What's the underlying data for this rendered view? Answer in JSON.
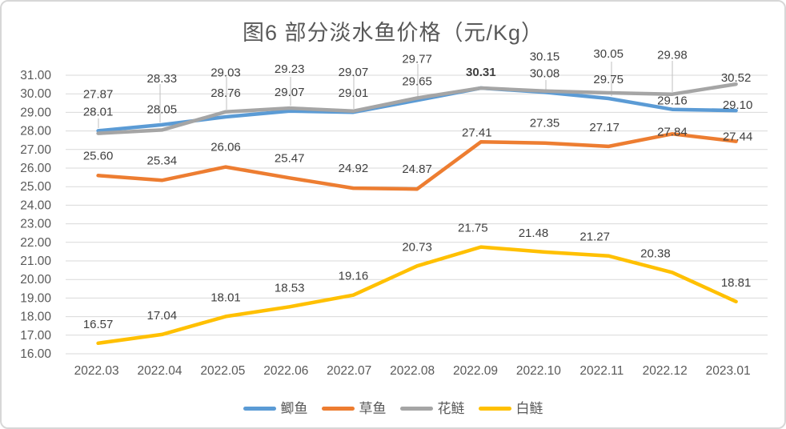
{
  "title": "图6 部分淡水鱼价格（元/Kg）",
  "chart_data": {
    "type": "line",
    "title": "图6 部分淡水鱼价格（元/Kg）",
    "categories": [
      "2022.03",
      "2022.04",
      "2022.05",
      "2022.06",
      "2022.07",
      "2022.08",
      "2022.09",
      "2022.10",
      "2022.11",
      "2022.12",
      "2023.01"
    ],
    "series": [
      {
        "id": "jiyu",
        "name": "鲫鱼",
        "color": "#5B9BD5",
        "values": [
          28.01,
          28.33,
          28.76,
          29.07,
          29.01,
          29.65,
          30.31,
          30.08,
          29.75,
          29.16,
          29.1
        ]
      },
      {
        "id": "caoyu",
        "name": "草鱼",
        "color": "#ED7D31",
        "values": [
          25.6,
          25.34,
          26.06,
          25.47,
          24.92,
          24.87,
          27.41,
          27.35,
          27.17,
          27.84,
          27.44
        ]
      },
      {
        "id": "hualian",
        "name": "花鲢",
        "color": "#A5A5A5",
        "values": [
          27.87,
          28.05,
          29.03,
          29.23,
          29.07,
          29.77,
          30.31,
          30.15,
          30.05,
          29.98,
          30.52
        ]
      },
      {
        "id": "bailian",
        "name": "白鲢",
        "color": "#FFC000",
        "values": [
          16.57,
          17.04,
          18.01,
          18.53,
          19.16,
          20.73,
          21.75,
          21.48,
          21.27,
          20.38,
          18.81
        ]
      }
    ],
    "ylim": [
      16,
      31
    ],
    "ytick_step": 1,
    "tick_decimals": 2,
    "label_decimals": 2,
    "grid": true,
    "legend_position": "bottom",
    "gridline_color": "#D9D9D9",
    "leader_line_color": "#BFBFBF",
    "axis_text_color": "#595959",
    "data_label_color": "#404040"
  }
}
